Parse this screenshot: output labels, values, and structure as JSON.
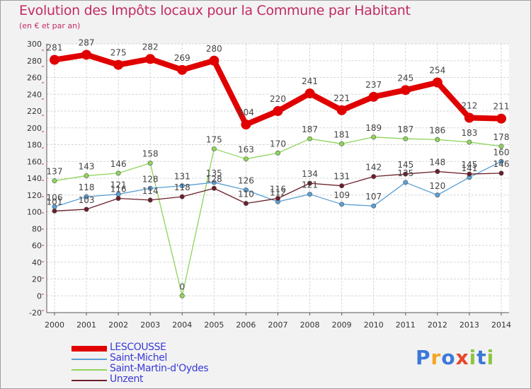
{
  "chart_data": {
    "type": "line",
    "title": "Evolution des Impôts locaux pour la Commune par Habitant",
    "subtitle": "(en € et par an)",
    "x": [
      "2000",
      "2001",
      "2002",
      "2003",
      "2004",
      "2005",
      "2006",
      "2007",
      "2008",
      "2009",
      "2010",
      "2011",
      "2012",
      "2013",
      "2014"
    ],
    "ylim": [
      -20,
      300
    ],
    "yticks": [
      -20,
      0,
      20,
      40,
      60,
      80,
      100,
      120,
      140,
      160,
      180,
      200,
      220,
      240,
      260,
      280,
      300
    ],
    "grid": true,
    "legend_position": "bottom-left",
    "series": [
      {
        "name": "LESCOUSSE",
        "color": "#e00000",
        "values": [
          281,
          287,
          275,
          282,
          269,
          280,
          204,
          220,
          241,
          221,
          237,
          245,
          254,
          212,
          211
        ],
        "labels": [
          "281",
          "287",
          "275",
          "282",
          "269",
          "280",
          "204",
          "220",
          "241",
          "221",
          "237",
          "245",
          "254",
          "212",
          "211"
        ]
      },
      {
        "name": "Saint-Michel",
        "color": "#5a9fd4",
        "values": [
          106,
          118,
          121,
          128,
          131,
          135,
          126,
          112,
          121,
          109,
          107,
          135,
          120,
          141,
          160
        ],
        "labels": [
          "106",
          "118",
          "121",
          "128",
          "131",
          "135",
          "126",
          "112",
          "121",
          "109",
          "107",
          "135",
          "120",
          "141",
          "160"
        ]
      },
      {
        "name": "Saint-Martin-d'Oydes",
        "color": "#8fd45a",
        "values": [
          137,
          143,
          146,
          158,
          0,
          175,
          163,
          170,
          187,
          181,
          189,
          187,
          186,
          183,
          178
        ],
        "labels": [
          "137",
          "143",
          "146",
          "158",
          "0",
          "175",
          "163",
          "170",
          "187",
          "181",
          "189",
          "187",
          "186",
          "183",
          "178"
        ]
      },
      {
        "name": "Unzent",
        "color": "#6b1e2a",
        "values": [
          101,
          103,
          116,
          114,
          118,
          128,
          110,
          116,
          134,
          131,
          142,
          145,
          148,
          145,
          146
        ],
        "labels": [
          "101",
          "103",
          "116",
          "114",
          "118",
          "128",
          "110",
          "116",
          "134",
          "131",
          "142",
          "145",
          "148",
          "145",
          "146"
        ]
      }
    ]
  },
  "logo": {
    "letters": [
      "P",
      "r",
      "o",
      "x",
      "i",
      "t",
      "i"
    ],
    "colors": [
      "#3c78d8",
      "#f5a623",
      "#3c78d8",
      "#e8462a",
      "#8cc63f",
      "#3c78d8",
      "#8cc63f"
    ]
  }
}
